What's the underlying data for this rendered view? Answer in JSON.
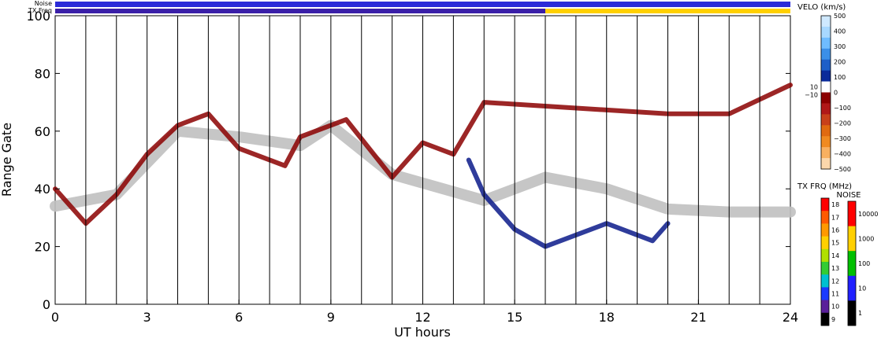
{
  "chart_data": {
    "type": "heatmap",
    "title": "",
    "xlabel": "UT hours",
    "ylabel": "Range Gate",
    "xlim": [
      0,
      24
    ],
    "ylim": [
      0,
      100
    ],
    "x_ticks": [
      0,
      3,
      6,
      9,
      12,
      15,
      18,
      21,
      24
    ],
    "y_ticks": [
      0,
      20,
      40,
      60,
      80,
      100
    ],
    "grid": "vertical lines every hour",
    "strips": [
      {
        "label": "Noise",
        "color": "#2b2bd8",
        "segments": []
      },
      {
        "label": "TX Freq",
        "segments": [
          {
            "from": 0,
            "to": 16,
            "color": "#3a1fa8"
          },
          {
            "from": 16,
            "to": 24,
            "color": "#ffd000"
          }
        ]
      }
    ],
    "velocity_colorbar": {
      "title": "VELO (km/s)",
      "ticks": [
        "500",
        "400",
        "300",
        "200",
        "100",
        "0",
        "−100",
        "−200",
        "−300",
        "−400",
        "−500"
      ],
      "side_labels": [
        "10",
        "−10"
      ],
      "colors": [
        "#cfe9ff",
        "#a8d8ff",
        "#6fbcff",
        "#3b8fe8",
        "#1e5fc8",
        "#0a2a9a",
        "#ffffff",
        "#8b0000",
        "#b01818",
        "#c8401a",
        "#e06a10",
        "#f08a20",
        "#f8b060",
        "#fbd7ab"
      ]
    },
    "tx_freq_colorbar": {
      "title": "TX FRQ (MHz)",
      "ticks": [
        "18",
        "17",
        "16",
        "15",
        "14",
        "13",
        "12",
        "11",
        "10",
        "9"
      ],
      "colors": [
        "#ff0000",
        "#ff5a00",
        "#ff9900",
        "#ffd000",
        "#b0e000",
        "#33cc33",
        "#00c0d0",
        "#1a3aff",
        "#5a1f9a",
        "#000000"
      ]
    },
    "noise_colorbar": {
      "title": "NOISE",
      "ticks": [
        "10000",
        "1000",
        "100",
        "10",
        "1"
      ],
      "colors": [
        "#ff0000",
        "#ffd000",
        "#00c000",
        "#2020ff",
        "#000000"
      ]
    },
    "features": [
      {
        "name": "ground-scatter band",
        "color": "#c0c0c0",
        "points": [
          [
            0,
            34
          ],
          [
            2,
            38
          ],
          [
            4,
            60
          ],
          [
            6,
            58
          ],
          [
            8,
            55
          ],
          [
            9,
            62
          ],
          [
            11,
            45
          ],
          [
            14,
            36
          ],
          [
            16,
            44
          ],
          [
            18,
            40
          ],
          [
            20,
            33
          ],
          [
            22,
            32
          ],
          [
            24,
            32
          ]
        ]
      },
      {
        "name": "negative velocity echoes",
        "color": "#8b0000",
        "points": [
          [
            0,
            40
          ],
          [
            1,
            28
          ],
          [
            2,
            38
          ],
          [
            3,
            52
          ],
          [
            4,
            62
          ],
          [
            5,
            66
          ],
          [
            6,
            54
          ],
          [
            7.5,
            48
          ],
          [
            8,
            58
          ],
          [
            9.5,
            64
          ],
          [
            11,
            44
          ],
          [
            12,
            56
          ],
          [
            13,
            52
          ],
          [
            14,
            70
          ],
          [
            20,
            66
          ],
          [
            22,
            66
          ],
          [
            24,
            76
          ]
        ]
      },
      {
        "name": "positive velocity echoes",
        "color": "#0a1a8a",
        "points": [
          [
            13.5,
            50
          ],
          [
            14,
            38
          ],
          [
            15,
            26
          ],
          [
            16,
            20
          ],
          [
            18,
            28
          ],
          [
            19.5,
            22
          ],
          [
            20,
            28
          ]
        ]
      }
    ]
  }
}
